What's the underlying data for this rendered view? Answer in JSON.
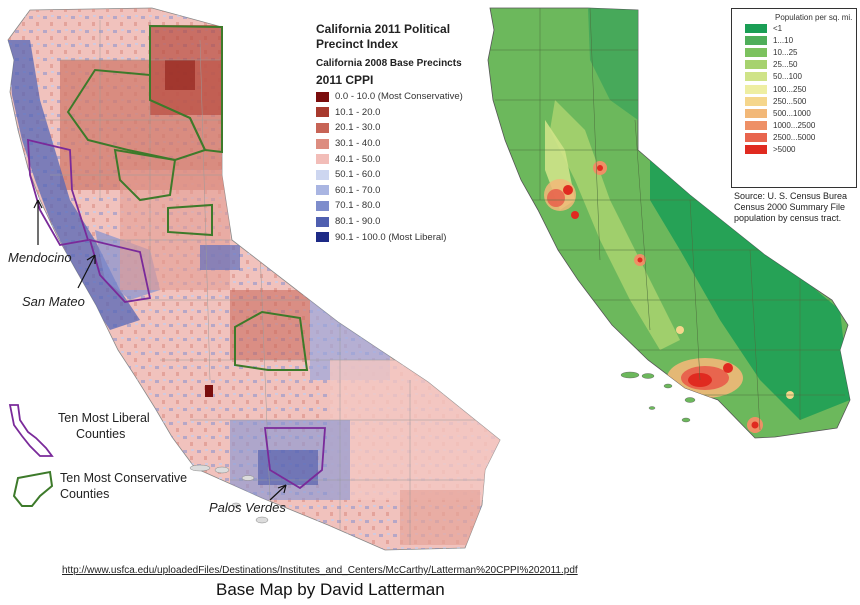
{
  "left_map": {
    "title_line1": "California 2011 Political",
    "title_line2": "Precinct Index",
    "subtitle": "California 2008 Base Precincts",
    "legend_heading": "2011 CPPI",
    "legend": [
      {
        "label": "0.0 - 10.0 (Most Conservative)",
        "color": "#7a0d0d"
      },
      {
        "label": "10.1 - 20.0",
        "color": "#a83a2e"
      },
      {
        "label": "20.1 - 30.0",
        "color": "#c76456"
      },
      {
        "label": "30.1 - 40.0",
        "color": "#dd8d80"
      },
      {
        "label": "40.1 - 50.0",
        "color": "#f2bdb8"
      },
      {
        "label": "50.1 - 60.0",
        "color": "#cdd6f0"
      },
      {
        "label": "60.1 - 70.0",
        "color": "#a9b5e2"
      },
      {
        "label": "70.1 - 80.0",
        "color": "#7e8dcc"
      },
      {
        "label": "80.1 - 90.0",
        "color": "#4f5fb0"
      },
      {
        "label": "90.1 - 100.0 (Most Liberal)",
        "color": "#1d2a86"
      }
    ],
    "callouts": {
      "mendocino": "Mendocino",
      "san_mateo": "San Mateo",
      "palos_verdes": "Palos Verdes"
    },
    "key": {
      "liberal_line1": "Ten Most Liberal",
      "liberal_line2": "Counties",
      "conservative_line1": "Ten Most Conservative",
      "conservative_line2": "Counties",
      "liberal_color": "#7a2a9a",
      "conservative_color": "#3d7a2a"
    }
  },
  "right_map": {
    "legend_title": "Population per sq. mi.",
    "legend": [
      {
        "label": "<1",
        "color": "#1a9e55"
      },
      {
        "label": "1...10",
        "color": "#4fae5a"
      },
      {
        "label": "10...25",
        "color": "#7cc25f"
      },
      {
        "label": "25...50",
        "color": "#a6d26e"
      },
      {
        "label": "50...100",
        "color": "#cfe388"
      },
      {
        "label": "100...250",
        "color": "#eeeea2"
      },
      {
        "label": "250...500",
        "color": "#f5d68c"
      },
      {
        "label": "500...1000",
        "color": "#f2b878"
      },
      {
        "label": "1000...2500",
        "color": "#ee9066"
      },
      {
        "label": "2500...5000",
        "color": "#e8654e"
      },
      {
        "label": ">5000",
        "color": "#e02a20"
      }
    ],
    "source_line1": "Source: U. S. Census Burea",
    "source_line2": "Census 2000 Summary File",
    "source_line3": "population by census tract."
  },
  "footer": {
    "url": "http://www.usfca.edu/uploadedFiles/Destinations/Institutes_and_Centers/McCarthy/Latterman%20CPPI%202011.pdf",
    "credit": "Base Map by David Latterman"
  }
}
